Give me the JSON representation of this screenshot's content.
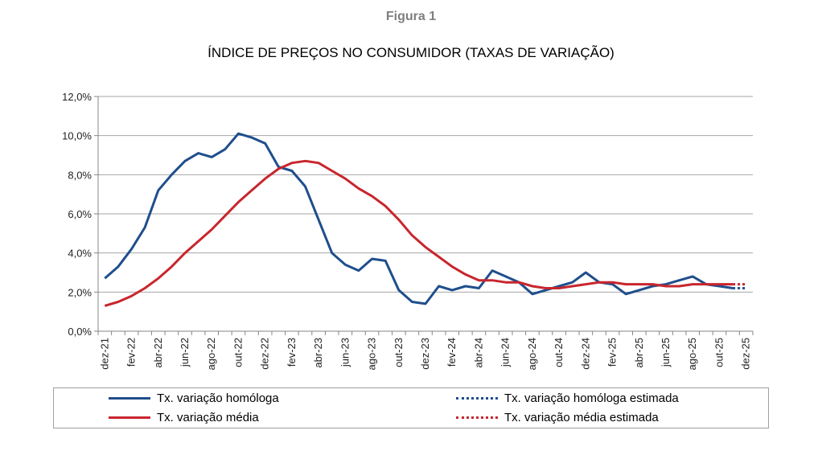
{
  "figure_label": "Figura 1",
  "chart_data": {
    "type": "line",
    "title": "ÍNDICE DE PREÇOS NO CONSUMIDOR (TAXAS DE VARIAÇÃO)",
    "xlabel": "",
    "ylabel": "",
    "ylim": [
      0,
      12
    ],
    "yticks": [
      "0,0%",
      "2,0%",
      "4,0%",
      "6,0%",
      "8,0%",
      "10,0%",
      "12,0%"
    ],
    "grid": true,
    "legend_placement": "bottom",
    "x": [
      "dez-21",
      "jan-22",
      "fev-22",
      "mar-22",
      "abr-22",
      "mai-22",
      "jun-22",
      "jul-22",
      "ago-22",
      "set-22",
      "out-22",
      "nov-22",
      "dez-22",
      "jan-23",
      "fev-23",
      "mar-23",
      "abr-23",
      "mai-23",
      "jun-23",
      "jul-23",
      "ago-23",
      "set-23",
      "out-23",
      "nov-23",
      "dez-23",
      "jan-24",
      "fev-24",
      "mar-24",
      "abr-24",
      "mai-24",
      "jun-24",
      "jul-24",
      "ago-24",
      "set-24",
      "out-24",
      "nov-24",
      "dez-24",
      "jan-25",
      "fev-25",
      "mar-25",
      "abr-25",
      "mai-25",
      "jun-25",
      "jul-25",
      "ago-25",
      "set-25",
      "out-25",
      "nov-25",
      "dez-25"
    ],
    "xtick_labels": [
      "dez-21",
      "fev-22",
      "abr-22",
      "jun-22",
      "ago-22",
      "out-22",
      "dez-22",
      "fev-23",
      "abr-23",
      "jun-23",
      "ago-23",
      "out-23",
      "dez-23",
      "fev-24",
      "abr-24",
      "jun-24",
      "ago-24",
      "out-24",
      "dez-24",
      "fev-25",
      "abr-25",
      "jun-25",
      "ago-25",
      "out-25",
      "dez-25"
    ],
    "series": [
      {
        "name": "Tx. variação homóloga",
        "color": "#1f4e8c",
        "style": "solid",
        "values": [
          2.7,
          3.3,
          4.2,
          5.3,
          7.2,
          8.0,
          8.7,
          9.1,
          8.9,
          9.3,
          10.1,
          9.9,
          9.6,
          8.4,
          8.2,
          7.4,
          5.7,
          4.0,
          3.4,
          3.1,
          3.7,
          3.6,
          2.1,
          1.5,
          1.4,
          2.3,
          2.1,
          2.3,
          2.2,
          3.1,
          2.8,
          2.5,
          1.9,
          2.1,
          2.3,
          2.5,
          3.0,
          2.5,
          2.4,
          1.9,
          2.1,
          2.3,
          2.4,
          2.6,
          2.8,
          2.4,
          2.3,
          2.2,
          null
        ]
      },
      {
        "name": "Tx. variação média",
        "color": "#c8262d",
        "style": "solid",
        "values": [
          1.3,
          1.5,
          1.8,
          2.2,
          2.7,
          3.3,
          4.0,
          4.6,
          5.2,
          5.9,
          6.6,
          7.2,
          7.8,
          8.3,
          8.6,
          8.7,
          8.6,
          8.2,
          7.8,
          7.3,
          6.9,
          6.4,
          5.7,
          4.9,
          4.3,
          3.8,
          3.3,
          2.9,
          2.6,
          2.6,
          2.5,
          2.5,
          2.3,
          2.2,
          2.2,
          2.3,
          2.4,
          2.5,
          2.5,
          2.4,
          2.4,
          2.4,
          2.3,
          2.3,
          2.4,
          2.4,
          2.4,
          2.4,
          null
        ]
      },
      {
        "name": "Tx. variação homóloga estimada",
        "color": "#1f4e8c",
        "style": "dotted",
        "values": [
          null,
          null,
          null,
          null,
          null,
          null,
          null,
          null,
          null,
          null,
          null,
          null,
          null,
          null,
          null,
          null,
          null,
          null,
          null,
          null,
          null,
          null,
          null,
          null,
          null,
          null,
          null,
          null,
          null,
          null,
          null,
          null,
          null,
          null,
          null,
          null,
          null,
          null,
          null,
          null,
          null,
          null,
          null,
          null,
          null,
          null,
          null,
          2.2,
          2.2
        ]
      },
      {
        "name": "Tx. variação média  estimada",
        "color": "#c8262d",
        "style": "dotted",
        "values": [
          null,
          null,
          null,
          null,
          null,
          null,
          null,
          null,
          null,
          null,
          null,
          null,
          null,
          null,
          null,
          null,
          null,
          null,
          null,
          null,
          null,
          null,
          null,
          null,
          null,
          null,
          null,
          null,
          null,
          null,
          null,
          null,
          null,
          null,
          null,
          null,
          null,
          null,
          null,
          null,
          null,
          null,
          null,
          null,
          null,
          null,
          null,
          2.4,
          2.4
        ]
      }
    ]
  }
}
